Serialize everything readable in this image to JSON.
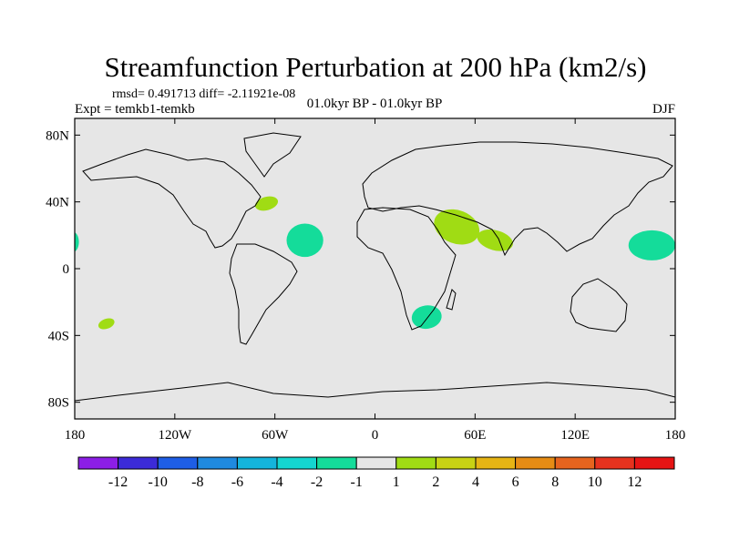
{
  "chart_data": {
    "type": "heatmap",
    "projection": "cylindrical-equidistant",
    "title": "Streamfunction Perturbation at 200 hPa (km2/s)",
    "stats_text": "rmsd= 0.491713 diff= -2.11921e-08",
    "left_label": "Expt = temkb1-temkb",
    "center_label": "01.0kyr BP - 01.0kyr BP",
    "right_label": "DJF",
    "xlim": [
      -180,
      180
    ],
    "ylim": [
      -90,
      90
    ],
    "x_ticks": [
      {
        "value": -180,
        "label": "180"
      },
      {
        "value": -120,
        "label": "120W"
      },
      {
        "value": -60,
        "label": "60W"
      },
      {
        "value": 0,
        "label": "0"
      },
      {
        "value": 60,
        "label": "60E"
      },
      {
        "value": 120,
        "label": "120E"
      },
      {
        "value": 180,
        "label": "180"
      }
    ],
    "y_ticks": [
      {
        "value": 80,
        "label": "80N"
      },
      {
        "value": 40,
        "label": "40N"
      },
      {
        "value": 0,
        "label": "0"
      },
      {
        "value": -40,
        "label": "40S"
      },
      {
        "value": -80,
        "label": "80S"
      }
    ],
    "background_color": "#e6e6e6",
    "contour_levels": [
      "-12",
      "-10",
      "-8",
      "-6",
      "-4",
      "-2",
      "-1",
      "1",
      "2",
      "4",
      "6",
      "8",
      "10",
      "12"
    ],
    "colorbar_colors": [
      "#8c1ee6",
      "#3c2bd8",
      "#1e5ee6",
      "#1f8ae0",
      "#14b4dc",
      "#14d6d0",
      "#14dc9a",
      "#e6e6e6",
      "#a0dc14",
      "#c8d214",
      "#e6b414",
      "#e68c14",
      "#e6641e",
      "#e6321e",
      "#e61414"
    ],
    "anomalies": [
      {
        "lon": 49,
        "lat": 25,
        "rlon": 14,
        "rlat": 10,
        "rotate": 20,
        "color": "#a0dc14",
        "value_range": "1 to 2"
      },
      {
        "lon": 72,
        "lat": 17,
        "rlon": 11,
        "rlat": 6,
        "rotate": 15,
        "color": "#a0dc14",
        "value_range": "1 to 2"
      },
      {
        "lon": -65,
        "lat": 39,
        "rlon": 7,
        "rlat": 4,
        "rotate": -15,
        "color": "#a0dc14",
        "value_range": "1 to 2"
      },
      {
        "lon": -161,
        "lat": -33,
        "rlon": 5,
        "rlat": 3,
        "rotate": -20,
        "color": "#a0dc14",
        "value_range": "1 to 2"
      },
      {
        "lon": -42,
        "lat": 17,
        "rlon": 11,
        "rlat": 10,
        "rotate": 0,
        "color": "#14dc9a",
        "value_range": "-2 to -1"
      },
      {
        "lon": 166,
        "lat": 14,
        "rlon": 14,
        "rlat": 9,
        "rotate": 0,
        "color": "#14dc9a",
        "value_range": "-2 to -1"
      },
      {
        "lon": -181,
        "lat": 16,
        "rlon": 3.5,
        "rlat": 6,
        "rotate": 0,
        "color": "#14dc9a",
        "value_range": "-2 to -1"
      },
      {
        "lon": 31,
        "lat": -29,
        "rlon": 9,
        "rlat": 7,
        "rotate": -8,
        "color": "#14dc9a",
        "value_range": "-2 to -1"
      }
    ]
  }
}
